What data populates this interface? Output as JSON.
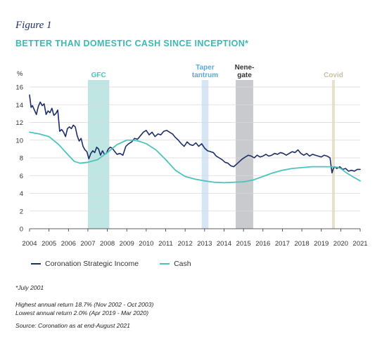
{
  "figure_label": "Figure 1",
  "title": "BETTER THAN DOMESTIC CASH SINCE INCEPTION*",
  "chart_data": {
    "type": "line",
    "ylabel": "%",
    "ylim": [
      0,
      16
    ],
    "yticks": [
      0,
      2,
      4,
      6,
      8,
      10,
      12,
      14,
      16
    ],
    "xlim": [
      2004,
      2021
    ],
    "xticks": [
      2004,
      2005,
      2006,
      2007,
      2008,
      2009,
      2010,
      2011,
      2012,
      2013,
      2014,
      2015,
      2016,
      2017,
      2018,
      2019,
      2020,
      2021
    ],
    "grid": "horizontal",
    "legend_position": "bottom",
    "colors": {
      "strategic_income": "#1d2e6b",
      "cash": "#4cc3bd"
    },
    "bands": [
      {
        "label": "GFC",
        "x0": 2007.0,
        "x1": 2008.1,
        "color": "#bfe6e3",
        "label_color": "#4cc3bd",
        "label_lines": [
          "GFC"
        ]
      },
      {
        "label": "Taper tantrum",
        "x0": 2012.85,
        "x1": 2013.2,
        "color": "#d6e6f5",
        "label_color": "#5aa8dc",
        "label_lines": [
          "Taper",
          "tantrum"
        ]
      },
      {
        "label": "Nene-gate",
        "x0": 2014.6,
        "x1": 2015.5,
        "color": "#c9cacd",
        "label_color": "#333333",
        "label_lines": [
          "Nene-",
          "gate"
        ]
      },
      {
        "label": "Covid",
        "x0": 2019.55,
        "x1": 2019.7,
        "color": "#e6e2cc",
        "label_color": "#c9c2a0",
        "label_lines": [
          "Covid"
        ]
      }
    ],
    "series": [
      {
        "name": "Coronation Strategic Income",
        "color": "#1d2e6b",
        "x": [
          2004.0,
          2004.08,
          2004.15,
          2004.25,
          2004.35,
          2004.45,
          2004.55,
          2004.65,
          2004.75,
          2004.85,
          2004.95,
          2005.05,
          2005.15,
          2005.25,
          2005.35,
          2005.45,
          2005.55,
          2005.65,
          2005.75,
          2005.85,
          2005.95,
          2006.05,
          2006.15,
          2006.25,
          2006.35,
          2006.45,
          2006.55,
          2006.65,
          2006.75,
          2006.85,
          2006.95,
          2007.05,
          2007.15,
          2007.25,
          2007.35,
          2007.45,
          2007.55,
          2007.65,
          2007.75,
          2007.85,
          2007.95,
          2008.05,
          2008.15,
          2008.25,
          2008.35,
          2008.5,
          2008.65,
          2008.8,
          2008.95,
          2009.1,
          2009.25,
          2009.4,
          2009.55,
          2009.7,
          2009.85,
          2010.0,
          2010.15,
          2010.3,
          2010.45,
          2010.6,
          2010.75,
          2010.9,
          2011.05,
          2011.2,
          2011.35,
          2011.5,
          2011.65,
          2011.8,
          2011.95,
          2012.1,
          2012.25,
          2012.4,
          2012.55,
          2012.7,
          2012.85,
          2013.0,
          2013.15,
          2013.3,
          2013.45,
          2013.6,
          2013.75,
          2013.9,
          2014.05,
          2014.2,
          2014.35,
          2014.5,
          2014.65,
          2014.8,
          2014.95,
          2015.1,
          2015.25,
          2015.4,
          2015.55,
          2015.7,
          2015.85,
          2016.0,
          2016.15,
          2016.3,
          2016.45,
          2016.6,
          2016.75,
          2016.9,
          2017.05,
          2017.2,
          2017.35,
          2017.5,
          2017.65,
          2017.8,
          2017.95,
          2018.1,
          2018.25,
          2018.4,
          2018.55,
          2018.7,
          2018.85,
          2019.0,
          2019.15,
          2019.3,
          2019.45,
          2019.55,
          2019.62,
          2019.7,
          2019.8,
          2019.95,
          2020.1,
          2020.25,
          2020.4,
          2020.55,
          2020.7,
          2020.85,
          2021.0
        ],
        "values": [
          15.1,
          13.7,
          13.9,
          13.4,
          12.9,
          13.8,
          14.3,
          13.9,
          14.1,
          12.9,
          13.3,
          13.1,
          13.6,
          12.8,
          13.0,
          13.4,
          11.0,
          11.2,
          10.9,
          10.4,
          11.3,
          11.5,
          11.3,
          11.7,
          11.5,
          10.5,
          9.9,
          10.2,
          9.3,
          8.9,
          8.7,
          7.9,
          8.5,
          8.8,
          8.6,
          9.2,
          9.0,
          8.3,
          8.8,
          8.4,
          8.5,
          9.0,
          9.2,
          9.1,
          8.8,
          8.4,
          8.5,
          8.3,
          9.3,
          9.6,
          9.8,
          10.2,
          10.1,
          10.5,
          10.9,
          11.1,
          10.6,
          10.9,
          10.4,
          10.7,
          10.6,
          11.0,
          11.1,
          10.9,
          10.7,
          10.3,
          10.0,
          9.6,
          9.3,
          9.8,
          9.5,
          9.4,
          9.7,
          9.3,
          9.6,
          9.1,
          8.8,
          8.7,
          8.6,
          8.2,
          8.0,
          7.8,
          7.5,
          7.4,
          7.1,
          7.0,
          7.3,
          7.6,
          7.9,
          8.1,
          8.3,
          8.2,
          8.0,
          8.3,
          8.1,
          8.2,
          8.4,
          8.2,
          8.3,
          8.5,
          8.4,
          8.6,
          8.5,
          8.3,
          8.5,
          8.7,
          8.6,
          8.9,
          8.5,
          8.3,
          8.5,
          8.2,
          8.4,
          8.3,
          8.2,
          8.1,
          8.3,
          8.2,
          8.0,
          6.3,
          6.8,
          7.0,
          6.8,
          7.0,
          6.7,
          6.8,
          6.5,
          6.6,
          6.5,
          6.7,
          6.7
        ]
      },
      {
        "name": "Cash",
        "color": "#4cc3bd",
        "x": [
          2004.0,
          2004.5,
          2005.0,
          2005.5,
          2006.0,
          2006.3,
          2006.6,
          2007.0,
          2007.5,
          2008.0,
          2008.5,
          2009.0,
          2009.3,
          2009.6,
          2010.0,
          2010.5,
          2011.0,
          2011.5,
          2012.0,
          2012.5,
          2013.0,
          2013.5,
          2014.0,
          2014.5,
          2015.0,
          2015.5,
          2016.0,
          2016.5,
          2017.0,
          2017.5,
          2018.0,
          2018.5,
          2019.0,
          2019.5,
          2019.8,
          2020.0,
          2020.3,
          2020.6,
          2021.0
        ],
        "values": [
          10.9,
          10.7,
          10.4,
          9.5,
          8.3,
          7.6,
          7.4,
          7.5,
          7.8,
          8.6,
          9.5,
          10.0,
          10.0,
          9.9,
          9.6,
          8.9,
          7.8,
          6.6,
          5.9,
          5.6,
          5.4,
          5.25,
          5.2,
          5.25,
          5.3,
          5.5,
          5.9,
          6.3,
          6.6,
          6.8,
          6.9,
          7.0,
          7.0,
          7.0,
          6.95,
          6.8,
          6.3,
          5.9,
          5.4
        ]
      }
    ]
  },
  "legend": [
    {
      "label": "Coronation Strategic Income",
      "color": "#1d2e6b"
    },
    {
      "label": "Cash",
      "color": "#4cc3bd"
    }
  ],
  "notes": {
    "inception": "*July 2001",
    "highest": "Highest annual return 18.7% (Nov 2002 - Oct 2003)",
    "lowest": "Lowest annual return 2.0% (Apr 2019 - Mar 2020)",
    "source": "Source: Coronation as at end-August 2021"
  }
}
